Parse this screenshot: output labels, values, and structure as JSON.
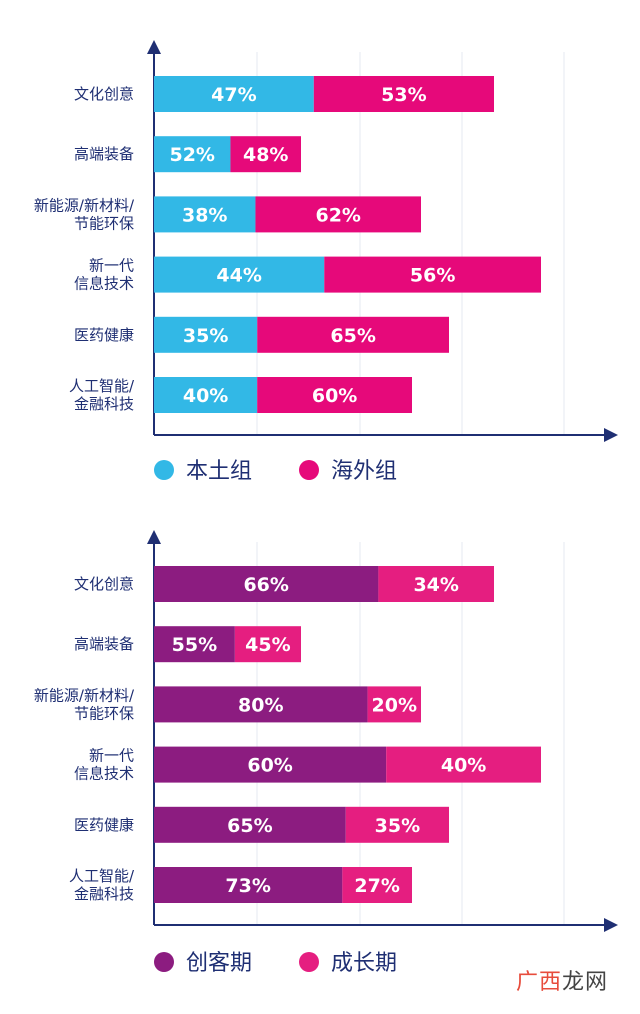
{
  "colors": {
    "axis": "#1f2f73",
    "grid": "#e5e8f0",
    "label_text": "#1f2f73",
    "bar_text": "#ffffff",
    "local": "#32b8e6",
    "overseas": "#e6097a",
    "startup": "#8c1c80",
    "growth": "#e51e80"
  },
  "chart_data": [
    {
      "type": "bar",
      "orientation": "horizontal",
      "stacked": true,
      "categories": [
        [
          "文化创意"
        ],
        [
          "高端装备"
        ],
        [
          "新能源/新材料/",
          "节能环保"
        ],
        [
          "新一代",
          "信息技术"
        ],
        [
          "医药健康"
        ],
        [
          "人工智能/",
          "金融科技"
        ]
      ],
      "series": [
        {
          "name": "本土组",
          "color": "#32b8e6",
          "values": [
            47,
            52,
            38,
            44,
            35,
            40
          ]
        },
        {
          "name": "海外组",
          "color": "#e6097a",
          "values": [
            53,
            48,
            62,
            56,
            65,
            60
          ]
        }
      ],
      "value_suffix": "%",
      "bar_extents": [
        340,
        147,
        267,
        387,
        295,
        258
      ],
      "xlim": [
        0,
        450
      ],
      "grid": true,
      "legend": "bottom-left"
    },
    {
      "type": "bar",
      "orientation": "horizontal",
      "stacked": true,
      "categories": [
        [
          "文化创意"
        ],
        [
          "高端装备"
        ],
        [
          "新能源/新材料/",
          "节能环保"
        ],
        [
          "新一代",
          "信息技术"
        ],
        [
          "医药健康"
        ],
        [
          "人工智能/",
          "金融科技"
        ]
      ],
      "series": [
        {
          "name": "创客期",
          "color": "#8c1c80",
          "values": [
            66,
            55,
            80,
            60,
            65,
            73
          ]
        },
        {
          "name": "成长期",
          "color": "#e51e80",
          "values": [
            34,
            45,
            20,
            40,
            35,
            27
          ]
        }
      ],
      "value_suffix": "%",
      "bar_extents": [
        340,
        147,
        267,
        387,
        295,
        258
      ],
      "xlim": [
        0,
        450
      ],
      "grid": true,
      "legend": "bottom-left"
    }
  ],
  "watermark": {
    "part1": "广西",
    "part2": "龙网"
  }
}
